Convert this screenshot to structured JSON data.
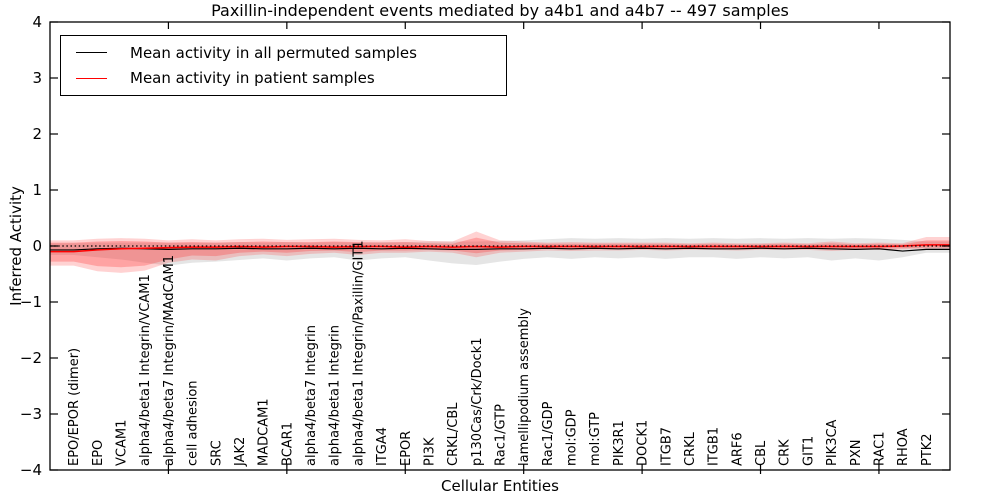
{
  "figure": {
    "title": "Paxillin-independent events mediated by a4b1 and a4b7 -- 497 samples",
    "xlabel": "Cellular Entities",
    "ylabel": "Inferred Activity"
  },
  "legend": {
    "entries": [
      {
        "label": "Mean activity in all permuted samples",
        "color": "#000000"
      },
      {
        "label": "Mean activity in patient samples",
        "color": "#ff0000"
      }
    ],
    "position": "upper left"
  },
  "chart_data": {
    "type": "line",
    "title": "Paxillin-independent events mediated by a4b1 and a4b7 -- 497 samples",
    "xlabel": "Cellular Entities",
    "ylabel": "Inferred Activity",
    "xlim": [
      0,
      38
    ],
    "ylim": [
      -4,
      4
    ],
    "grid": false,
    "legend_position": "upper left",
    "x_major_ticks": [
      5,
      10,
      15,
      20,
      25,
      30,
      35
    ],
    "y_ticks": [
      4,
      3,
      2,
      1,
      0,
      -1,
      -2,
      -3,
      -4
    ],
    "y_tick_labels": [
      "4",
      "3",
      "2",
      "1",
      "0",
      "−1",
      "−2",
      "−3",
      "−4"
    ],
    "zero_line": 0,
    "categories": [
      "EPO/EPOR (dimer)",
      "EPO",
      "VCAM1",
      "alpha4/beta1 Integrin/VCAM1",
      "alpha4/beta7 Integrin/MAdCAM1",
      "cell adhesion",
      "SRC",
      "JAK2",
      "MADCAM1",
      "BCAR1",
      "alpha4/beta7 Integrin",
      "alpha4/beta1 Integrin",
      "alpha4/beta1 Integrin/Paxillin/GIT1",
      "ITGA4",
      "EPOR",
      "PI3K",
      "CRKL/CBL",
      "p130Cas/Crk/Dock1",
      "Rac1/GTP",
      "lamellipodium assembly",
      "Rac1/GDP",
      "mol:GDP",
      "mol:GTP",
      "PIK3R1",
      "DOCK1",
      "ITGB7",
      "CRKL",
      "ITGB1",
      "ARF6",
      "CBL",
      "CRK",
      "GIT1",
      "PIK3CA",
      "PXN",
      "RAC1",
      "RHOA",
      "PTK2"
    ],
    "series": [
      {
        "name": "Mean activity in all permuted samples",
        "color": "#000000",
        "values": [
          -0.07,
          -0.05,
          -0.04,
          -0.05,
          -0.06,
          -0.05,
          -0.05,
          -0.04,
          -0.05,
          -0.05,
          -0.04,
          -0.05,
          -0.04,
          -0.05,
          -0.04,
          -0.05,
          -0.06,
          -0.06,
          -0.05,
          -0.05,
          -0.04,
          -0.05,
          -0.04,
          -0.05,
          -0.04,
          -0.05,
          -0.04,
          -0.05,
          -0.05,
          -0.04,
          -0.05,
          -0.04,
          -0.05,
          -0.06,
          -0.05,
          -0.09,
          -0.06
        ]
      },
      {
        "name": "Mean activity in patient samples",
        "color": "#ff0000",
        "values": [
          -0.1,
          -0.07,
          -0.05,
          -0.04,
          -0.03,
          -0.02,
          -0.02,
          -0.01,
          -0.02,
          -0.01,
          -0.01,
          -0.02,
          -0.01,
          -0.01,
          -0.02,
          -0.01,
          -0.02,
          -0.01,
          -0.02,
          -0.01,
          -0.01,
          -0.01,
          -0.01,
          -0.01,
          -0.01,
          -0.01,
          -0.01,
          -0.01,
          -0.01,
          -0.01,
          -0.01,
          -0.01,
          -0.01,
          -0.01,
          -0.01,
          0.0,
          0.02
        ]
      }
    ],
    "bands": [
      {
        "name": "permuted-samples-std-band",
        "color": "rgba(40,40,40,0.12)",
        "upper": [
          0.05,
          0.06,
          0.06,
          0.06,
          0.06,
          0.06,
          0.06,
          0.07,
          0.06,
          0.07,
          0.06,
          0.07,
          0.06,
          0.07,
          0.07,
          0.08,
          0.08,
          0.08,
          0.09,
          0.1,
          0.12,
          0.14,
          0.13,
          0.14,
          0.13,
          0.14,
          0.13,
          0.14,
          0.13,
          0.14,
          0.13,
          0.14,
          0.13,
          0.14,
          0.13,
          0.11,
          0.08
        ],
        "lower": [
          -0.16,
          -0.2,
          -0.24,
          -0.3,
          -0.35,
          -0.3,
          -0.28,
          -0.25,
          -0.22,
          -0.26,
          -0.22,
          -0.2,
          -0.26,
          -0.22,
          -0.2,
          -0.26,
          -0.31,
          -0.34,
          -0.28,
          -0.23,
          -0.2,
          -0.23,
          -0.2,
          -0.22,
          -0.2,
          -0.23,
          -0.2,
          -0.2,
          -0.23,
          -0.2,
          -0.22,
          -0.2,
          -0.26,
          -0.22,
          -0.26,
          -0.2,
          -0.12
        ]
      },
      {
        "name": "patient-samples-outer-band",
        "color": "rgba(255,30,30,0.20)",
        "upper": [
          0.1,
          0.13,
          0.14,
          0.13,
          0.1,
          0.12,
          0.1,
          0.12,
          0.13,
          0.11,
          0.12,
          0.13,
          0.11,
          0.1,
          0.12,
          0.09,
          0.08,
          0.26,
          0.1,
          0.08,
          0.06,
          0.07,
          0.06,
          0.06,
          0.06,
          0.06,
          0.05,
          0.06,
          0.05,
          0.05,
          0.06,
          0.05,
          0.08,
          0.05,
          0.06,
          0.05,
          0.16
        ],
        "lower": [
          -0.35,
          -0.45,
          -0.48,
          -0.44,
          -0.3,
          -0.24,
          -0.26,
          -0.18,
          -0.15,
          -0.18,
          -0.14,
          -0.12,
          -0.16,
          -0.12,
          -0.12,
          -0.1,
          -0.12,
          -0.2,
          -0.12,
          -0.1,
          -0.08,
          -0.09,
          -0.08,
          -0.08,
          -0.07,
          -0.08,
          -0.07,
          -0.07,
          -0.08,
          -0.07,
          -0.07,
          -0.07,
          -0.09,
          -0.07,
          -0.07,
          -0.06,
          -0.05
        ]
      },
      {
        "name": "patient-samples-inner-band",
        "color": "rgba(255,30,30,0.26)",
        "upper": [
          0.06,
          0.08,
          0.09,
          0.08,
          0.06,
          0.07,
          0.06,
          0.07,
          0.08,
          0.07,
          0.07,
          0.08,
          0.07,
          0.06,
          0.07,
          0.05,
          0.04,
          0.15,
          0.06,
          0.05,
          0.04,
          0.04,
          0.04,
          0.04,
          0.04,
          0.04,
          0.03,
          0.04,
          0.03,
          0.03,
          0.04,
          0.03,
          0.05,
          0.03,
          0.04,
          0.03,
          0.1
        ],
        "lower": [
          -0.28,
          -0.36,
          -0.38,
          -0.35,
          -0.24,
          -0.17,
          -0.18,
          -0.12,
          -0.1,
          -0.12,
          -0.09,
          -0.08,
          -0.11,
          -0.08,
          -0.08,
          -0.07,
          -0.08,
          -0.13,
          -0.08,
          -0.07,
          -0.05,
          -0.06,
          -0.05,
          -0.05,
          -0.05,
          -0.05,
          -0.04,
          -0.05,
          -0.05,
          -0.04,
          -0.05,
          -0.04,
          -0.06,
          -0.05,
          -0.05,
          -0.04,
          -0.03
        ]
      }
    ]
  }
}
